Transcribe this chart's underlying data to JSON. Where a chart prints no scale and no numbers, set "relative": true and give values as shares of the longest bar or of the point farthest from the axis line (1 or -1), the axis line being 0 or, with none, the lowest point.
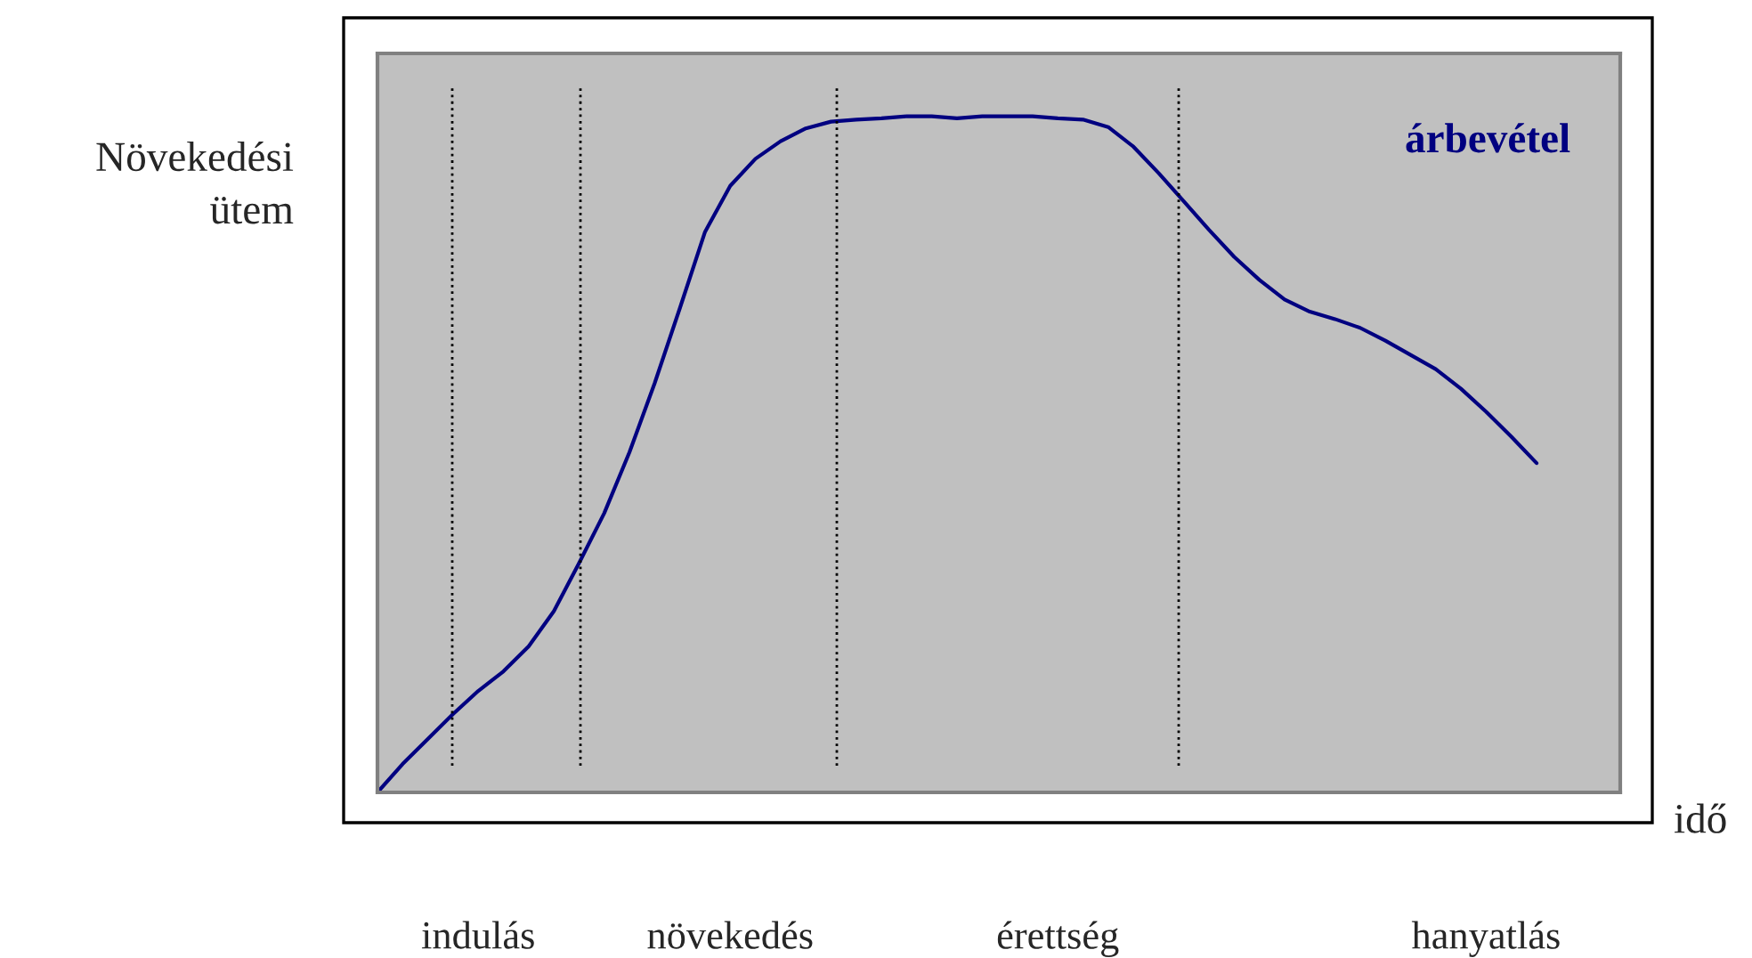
{
  "chart_data": {
    "type": "line",
    "relative": true,
    "xlabel": "idő",
    "ylabel": "Növekedési\nütem",
    "categories": [
      null,
      null,
      null,
      null,
      "indulás",
      null,
      null,
      null,
      null,
      null,
      null,
      null,
      null,
      null,
      "növekedés",
      null,
      null,
      null,
      null,
      null,
      null,
      null,
      null,
      null,
      null,
      null,
      null,
      "érettség",
      null,
      null,
      null,
      null,
      null,
      null,
      null,
      null,
      null,
      null,
      null,
      null,
      null,
      null,
      null,
      null,
      "hanyatlás",
      null,
      null
    ],
    "marker": "none",
    "line_style": "solid",
    "series": [
      {
        "name": "árbevétel",
        "color": "#000080",
        "values": [
          0,
          0.042,
          0.079,
          0.116,
          0.15,
          0.179,
          0.216,
          0.268,
          0.339,
          0.413,
          0.503,
          0.605,
          0.716,
          0.829,
          0.897,
          0.937,
          0.963,
          0.982,
          0.992,
          0.995,
          0.997,
          1.0,
          1.0,
          0.997,
          1.0,
          1.0,
          1.0,
          0.997,
          0.995,
          0.984,
          0.955,
          0.916,
          0.874,
          0.832,
          0.792,
          0.758,
          0.729,
          0.711,
          0.7,
          0.687,
          0.668,
          0.647,
          0.626,
          0.597,
          0.563,
          0.526,
          0.487
        ]
      }
    ]
  }
}
